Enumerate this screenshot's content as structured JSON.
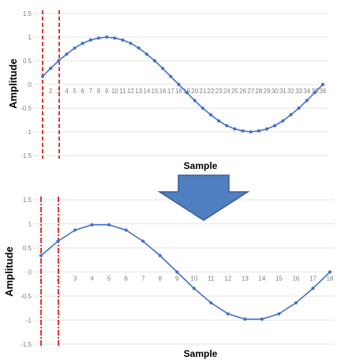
{
  "chart_data": [
    {
      "type": "line",
      "xlabel": "Sample",
      "ylabel": "Amplitude",
      "ylim": [
        -1.5,
        1.5
      ],
      "yticks": [
        1.5,
        1,
        0.5,
        0,
        -0.5,
        -1,
        -1.5
      ],
      "ytick_labels": [
        "1.5",
        "1",
        "0.5",
        "0",
        "-0.5",
        "-1",
        "-1.5"
      ],
      "x": [
        1,
        2,
        3,
        4,
        5,
        6,
        7,
        8,
        9,
        10,
        11,
        12,
        13,
        14,
        15,
        16,
        17,
        18,
        19,
        20,
        21,
        22,
        23,
        24,
        25,
        26,
        27,
        28,
        29,
        30,
        31,
        32,
        33,
        34,
        35,
        36
      ],
      "x_tick_labels": [
        "1",
        "2",
        "3",
        "4",
        "5",
        "6",
        "7",
        "8",
        "9",
        "10",
        "11",
        "12",
        "13",
        "14",
        "15",
        "16",
        "17",
        "18",
        "19",
        "20",
        "21",
        "22",
        "23",
        "24",
        "25",
        "26",
        "27",
        "28",
        "29",
        "30",
        "31",
        "32",
        "33",
        "34",
        "35",
        "36"
      ],
      "series": [
        {
          "values": [
            0.17,
            0.34,
            0.5,
            0.64,
            0.77,
            0.87,
            0.94,
            0.98,
            1,
            0.98,
            0.94,
            0.87,
            0.77,
            0.64,
            0.5,
            0.34,
            0.17,
            0,
            -0.17,
            -0.34,
            -0.5,
            -0.64,
            -0.77,
            -0.87,
            -0.94,
            -0.98,
            -1,
            -0.98,
            -0.94,
            -0.87,
            -0.77,
            -0.64,
            -0.5,
            -0.34,
            -0.17,
            0
          ]
        }
      ],
      "markers": "red dashed vertical lines near samples 1 and 3",
      "grid": "horizontal",
      "colors": {
        "line": "#4472c4",
        "marker_lines": "#e00000",
        "grid": "#e6e6e6"
      }
    },
    {
      "type": "line",
      "xlabel": "Sample",
      "ylabel": "Amplitude",
      "ylim": [
        -1.5,
        1.5
      ],
      "yticks": [
        1.5,
        1,
        0.5,
        0,
        -0.5,
        -1,
        -1.5
      ],
      "ytick_labels": [
        "1.5",
        "1",
        "0.5",
        "0",
        "-0.5",
        "-1",
        "-1.5"
      ],
      "x": [
        1,
        2,
        3,
        4,
        5,
        6,
        7,
        8,
        9,
        10,
        11,
        12,
        13,
        14,
        15,
        16,
        17,
        18
      ],
      "x_tick_labels": [
        "1",
        "2",
        "3",
        "4",
        "5",
        "6",
        "7",
        "8",
        "9",
        "10",
        "11",
        "12",
        "13",
        "14",
        "15",
        "16",
        "17",
        "18"
      ],
      "series": [
        {
          "values": [
            0.34,
            0.64,
            0.87,
            0.98,
            0.98,
            0.87,
            0.64,
            0.34,
            0,
            -0.34,
            -0.64,
            -0.87,
            -0.98,
            -0.98,
            -0.87,
            -0.64,
            -0.34,
            0
          ]
        }
      ],
      "markers": "red dash-dot vertical lines near samples 1 and 2",
      "grid": "horizontal",
      "colors": {
        "line": "#4472c4",
        "marker_lines": "#e00000",
        "grid": "#e6e6e6"
      }
    }
  ],
  "arrow": {
    "direction": "down",
    "color": "#4f7fc0",
    "border": "#3a5f93"
  }
}
